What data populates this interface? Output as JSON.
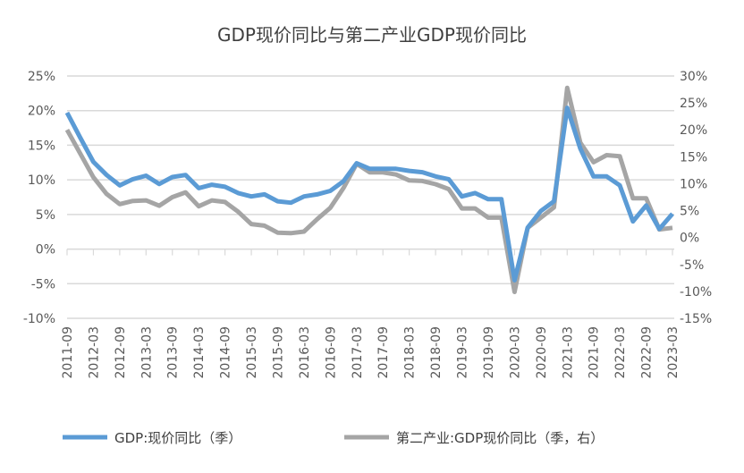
{
  "chart_data": {
    "type": "line",
    "title": "GDP现价同比与第二产业GDP现价同比",
    "x": [
      "2011-09",
      "2011-12",
      "2012-03",
      "2012-06",
      "2012-09",
      "2012-12",
      "2013-03",
      "2013-06",
      "2013-09",
      "2013-12",
      "2014-03",
      "2014-06",
      "2014-09",
      "2014-12",
      "2015-03",
      "2015-06",
      "2015-09",
      "2015-12",
      "2016-03",
      "2016-06",
      "2016-09",
      "2016-12",
      "2017-03",
      "2017-06",
      "2017-09",
      "2017-12",
      "2018-03",
      "2018-06",
      "2018-09",
      "2018-12",
      "2019-03",
      "2019-06",
      "2019-09",
      "2019-12",
      "2020-03",
      "2020-06",
      "2020-09",
      "2020-12",
      "2021-03",
      "2021-06",
      "2021-09",
      "2021-12",
      "2022-03",
      "2022-06",
      "2022-09",
      "2022-12",
      "2023-03"
    ],
    "series": [
      {
        "name": "GDP:现价同比（季）",
        "axis": "left",
        "color": "#5B9BD5",
        "values": [
          19.7,
          16.1,
          12.6,
          10.7,
          9.2,
          10.1,
          10.6,
          9.4,
          10.4,
          10.7,
          8.8,
          9.3,
          9.0,
          8.1,
          7.6,
          7.9,
          6.9,
          6.7,
          7.6,
          7.9,
          8.4,
          9.8,
          12.4,
          11.6,
          11.6,
          11.6,
          11.3,
          11.1,
          10.5,
          10.1,
          7.6,
          8.1,
          7.2,
          7.2,
          -4.5,
          3.1,
          5.5,
          6.9,
          20.4,
          14.5,
          10.5,
          10.5,
          9.2,
          4.0,
          6.3,
          2.9,
          5.1
        ]
      },
      {
        "name": "第二产业:GDP现价同比（季，右）",
        "axis": "right",
        "color": "#A5A5A5",
        "values": [
          20.0,
          15.6,
          11.2,
          8.1,
          6.2,
          6.8,
          6.9,
          5.9,
          7.5,
          8.4,
          5.8,
          6.9,
          6.6,
          4.8,
          2.5,
          2.2,
          0.9,
          0.8,
          1.1,
          3.4,
          5.5,
          9.2,
          13.7,
          12.1,
          12.1,
          11.7,
          10.6,
          10.5,
          9.9,
          9.0,
          5.4,
          5.4,
          3.7,
          3.7,
          -10.1,
          1.8,
          3.7,
          5.6,
          27.8,
          17.6,
          14.0,
          15.3,
          15.1,
          7.3,
          7.3,
          1.5,
          1.8
        ]
      }
    ],
    "x_tick_labels": [
      "2011-09",
      "2012-03",
      "2012-09",
      "2013-03",
      "2013-09",
      "2014-03",
      "2014-09",
      "2015-03",
      "2015-09",
      "2016-03",
      "2016-09",
      "2017-03",
      "2017-09",
      "2018-03",
      "2018-09",
      "2019-03",
      "2019-09",
      "2020-03",
      "2020-09",
      "2021-03",
      "2021-09",
      "2022-03",
      "2022-09",
      "2023-03"
    ],
    "left_axis": {
      "ylim": [
        -10,
        25
      ],
      "ticks": [
        "25%",
        "20%",
        "15%",
        "10%",
        "5%",
        "0%",
        "-5%",
        "-10%"
      ]
    },
    "right_axis": {
      "ylim": [
        -15,
        30
      ],
      "ticks": [
        "30%",
        "25%",
        "20%",
        "15%",
        "10%",
        "5%",
        "0%",
        "-5%",
        "-10%",
        "-15%"
      ]
    },
    "grid": true,
    "legend_position": "bottom"
  }
}
